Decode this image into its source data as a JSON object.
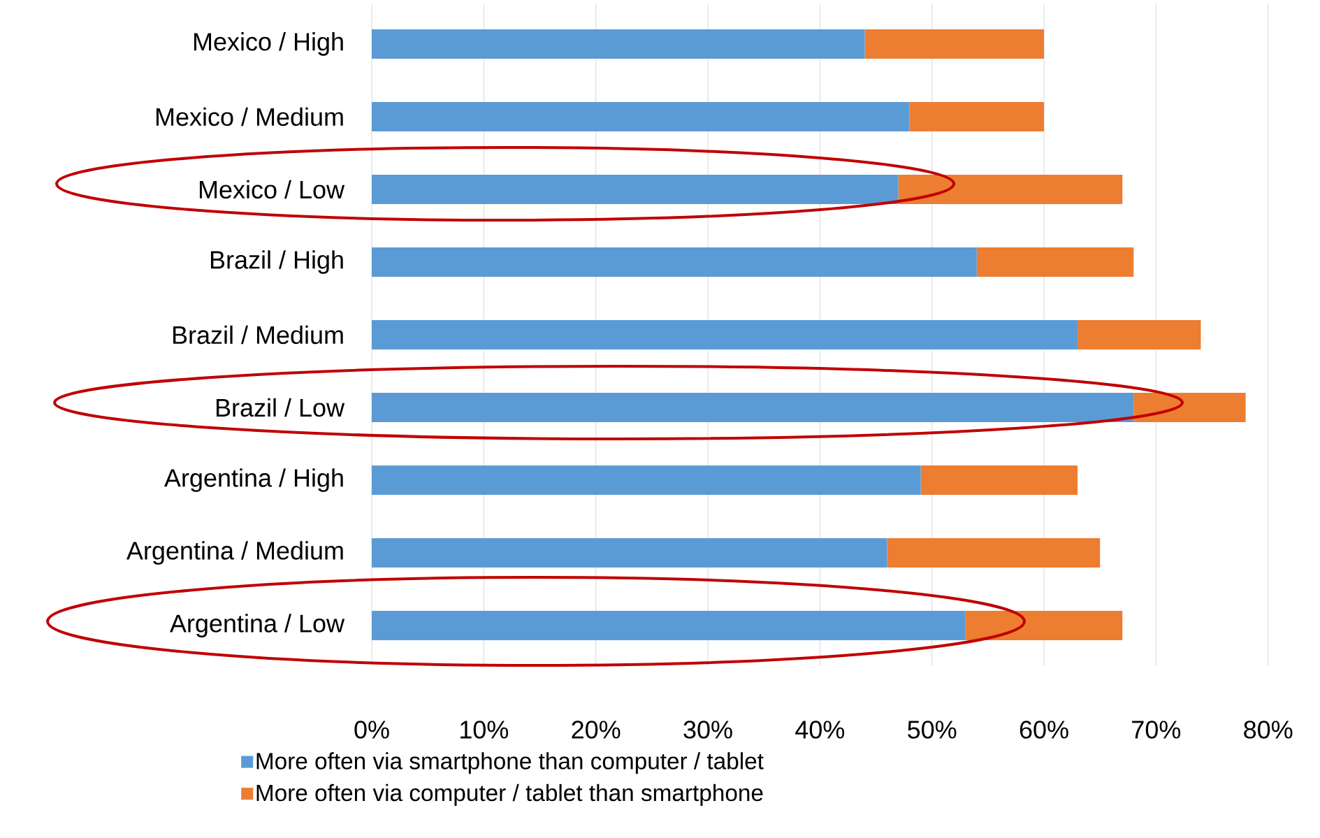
{
  "chart_data": {
    "type": "bar",
    "orientation": "horizontal",
    "stacked": true,
    "categories": [
      "Mexico / High",
      "Mexico / Medium",
      "Mexico / Low",
      "Brazil / High",
      "Brazil / Medium",
      "Brazil / Low",
      "Argentina / High",
      "Argentina / Medium",
      "Argentina / Low"
    ],
    "series": [
      {
        "name": "More often via smartphone than computer / tablet",
        "color": "#5b9bd5",
        "values": [
          44,
          48,
          47,
          54,
          63,
          68,
          49,
          46,
          53
        ]
      },
      {
        "name": "More often via computer / tablet than smartphone",
        "color": "#ed7d31",
        "values": [
          16,
          12,
          20,
          14,
          11,
          10,
          14,
          19,
          14
        ]
      }
    ],
    "xlim": [
      0,
      80
    ],
    "xticks": [
      {
        "value": 0,
        "label": "0%"
      },
      {
        "value": 10,
        "label": "10%"
      },
      {
        "value": 20,
        "label": "20%"
      },
      {
        "value": 30,
        "label": "30%"
      },
      {
        "value": 40,
        "label": "40%"
      },
      {
        "value": 50,
        "label": "50%"
      },
      {
        "value": 60,
        "label": "60%"
      },
      {
        "value": 70,
        "label": "70%"
      },
      {
        "value": 80,
        "label": "80%"
      }
    ],
    "grid": "x",
    "legend": "bottom"
  }
}
